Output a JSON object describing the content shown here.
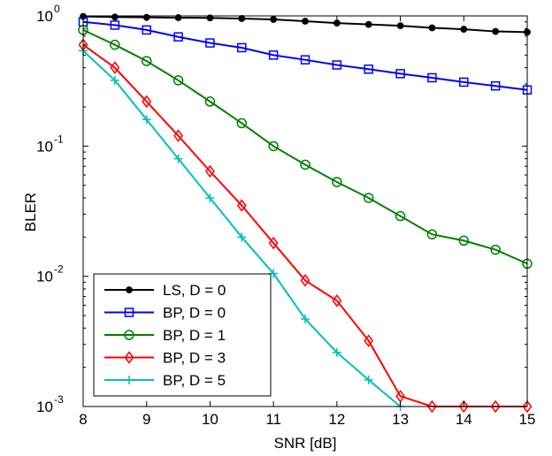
{
  "chart_data": {
    "type": "line",
    "title": "",
    "xlabel": "SNR [dB]",
    "ylabel": "BLER",
    "xlim": [
      8,
      15
    ],
    "ylim": [
      0.001,
      1
    ],
    "yscale": "log",
    "grid": false,
    "legend_position": "bottom-left",
    "x": [
      8,
      8.5,
      9,
      9.5,
      10,
      10.5,
      11,
      11.5,
      12,
      12.5,
      13,
      13.5,
      14,
      14.5,
      15
    ],
    "x_ticks": [
      "8",
      "9",
      "10",
      "11",
      "12",
      "13",
      "14",
      "15"
    ],
    "y_ticks": [
      {
        "base": "10",
        "exp": "0"
      },
      {
        "base": "10",
        "exp": "-1"
      },
      {
        "base": "10",
        "exp": "-2"
      },
      {
        "base": "10",
        "exp": "-3"
      }
    ],
    "series": [
      {
        "name": "LS, D = 0",
        "color": "#000000",
        "marker": "dot",
        "values": [
          0.99,
          0.98,
          0.975,
          0.97,
          0.965,
          0.955,
          0.94,
          0.91,
          0.88,
          0.86,
          0.84,
          0.81,
          0.79,
          0.76,
          0.75
        ]
      },
      {
        "name": "BP, D = 0",
        "color": "#0000ff",
        "marker": "square",
        "values": [
          0.9,
          0.85,
          0.78,
          0.69,
          0.62,
          0.57,
          0.5,
          0.46,
          0.42,
          0.39,
          0.36,
          0.335,
          0.31,
          0.29,
          0.27
        ]
      },
      {
        "name": "BP, D = 1",
        "color": "#008000",
        "marker": "circle",
        "values": [
          0.78,
          0.6,
          0.45,
          0.32,
          0.22,
          0.15,
          0.1,
          0.072,
          0.053,
          0.04,
          0.029,
          0.021,
          0.0188,
          0.016,
          0.0125
        ]
      },
      {
        "name": "BP, D = 3",
        "color": "#ff0000",
        "marker": "diamond",
        "values": [
          0.6,
          0.4,
          0.22,
          0.12,
          0.064,
          0.035,
          0.018,
          0.0093,
          0.0065,
          0.0032,
          0.0012,
          0.001,
          0.001,
          0.001,
          0.001
        ]
      },
      {
        "name": "BP, D = 5",
        "color": "#00bfbf",
        "marker": "plus",
        "x": [
          8,
          8.5,
          9,
          9.5,
          10,
          10.5,
          11,
          11.5,
          12,
          12.5,
          13
        ],
        "values": [
          0.54,
          0.32,
          0.16,
          0.08,
          0.04,
          0.02,
          0.0105,
          0.0047,
          0.0026,
          0.0016,
          0.001
        ]
      }
    ]
  }
}
